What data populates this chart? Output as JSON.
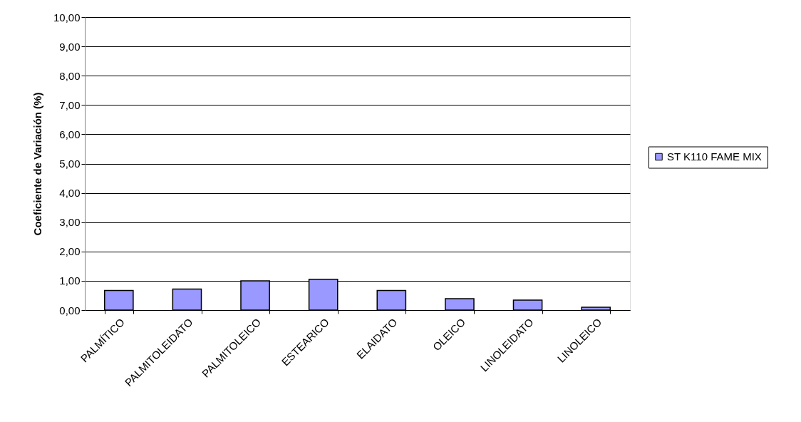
{
  "chart_data": {
    "type": "bar",
    "ylabel": "Coeficiente de Variación (%)",
    "categories": [
      "PALMÍTICO",
      "PALMITOLEIDATO",
      "PALMITOLEICO",
      "ESTEARICO",
      "ELAIDATO",
      "OLEICO",
      "LINOLEIDATO",
      "LINOLEICO"
    ],
    "series": [
      {
        "name": "ST K110 FAME MIX",
        "color": "#9999ff",
        "values": [
          0.67,
          0.72,
          1.0,
          1.05,
          0.67,
          0.39,
          0.34,
          0.1
        ]
      }
    ],
    "ylim": [
      0,
      10
    ],
    "yticks": [
      {
        "value": 0,
        "label": "0,00"
      },
      {
        "value": 1,
        "label": "1,00"
      },
      {
        "value": 2,
        "label": "2,00"
      },
      {
        "value": 3,
        "label": "3,00"
      },
      {
        "value": 4,
        "label": "4,00"
      },
      {
        "value": 5,
        "label": "5,00"
      },
      {
        "value": 6,
        "label": "6,00"
      },
      {
        "value": 7,
        "label": "7,00"
      },
      {
        "value": 8,
        "label": "8,00"
      },
      {
        "value": 9,
        "label": "9,00"
      },
      {
        "value": 10,
        "label": "10,00"
      }
    ],
    "grid": "y",
    "legend": "right"
  }
}
